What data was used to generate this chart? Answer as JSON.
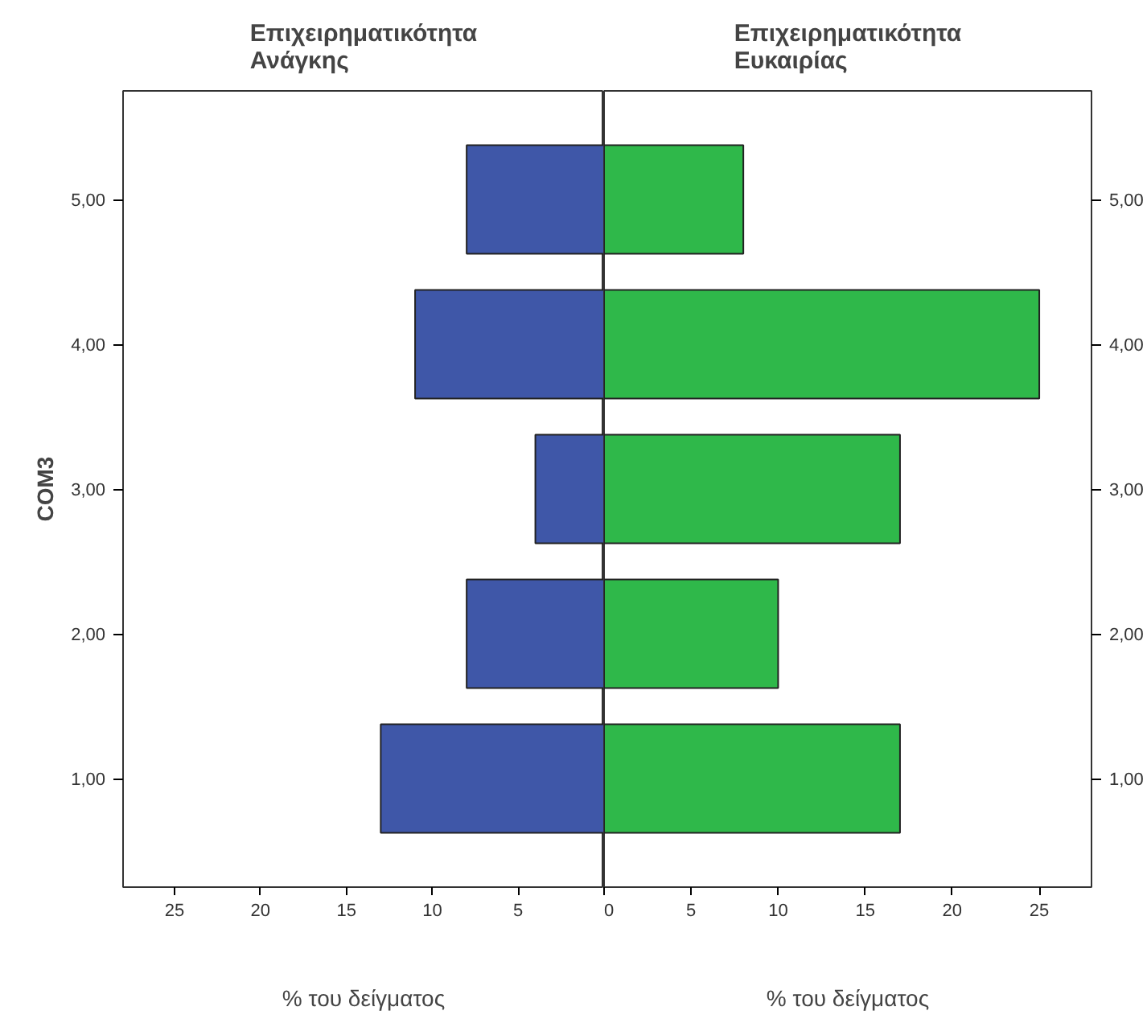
{
  "chart_data": [
    {
      "type": "bar",
      "orientation": "horizontal",
      "title": "Επιχειρηματικότητα\nΑνάγκης",
      "xlabel": "% του δείγματος",
      "ylabel": "COM3",
      "categories": [
        "5,00",
        "4,00",
        "3,00",
        "2,00",
        "1,00"
      ],
      "series": [
        {
          "color": "#3f57a8",
          "values": [
            8,
            11,
            4,
            8,
            13
          ]
        }
      ],
      "xlim": [
        28,
        0
      ],
      "xticks": [
        25,
        20,
        15,
        10,
        5
      ]
    },
    {
      "type": "bar",
      "orientation": "horizontal",
      "title": "Επιχειρηματικότητα\nΕυκαιρίας",
      "xlabel": "% του δείγματος",
      "categories": [
        "5,00",
        "4,00",
        "3,00",
        "2,00",
        "1,00"
      ],
      "series": [
        {
          "color": "#2fb84a",
          "values": [
            8,
            25,
            17,
            10,
            17
          ]
        }
      ],
      "xlim": [
        0,
        28
      ],
      "xticks": [
        0,
        5,
        10,
        15,
        20,
        25
      ]
    }
  ]
}
